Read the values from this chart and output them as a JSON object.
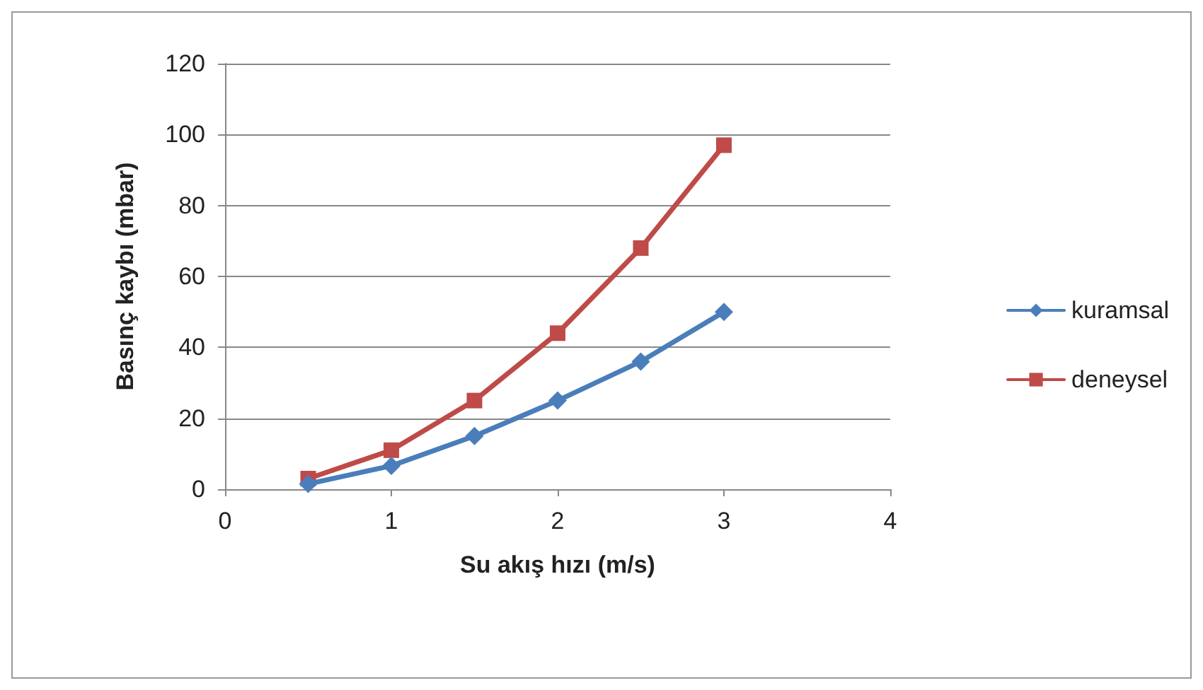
{
  "chart_data": {
    "type": "line",
    "xlabel": "Su akış hızı (m/s)",
    "ylabel": "Basınç kaybı (mbar)",
    "x": [
      0.5,
      1,
      1.5,
      2,
      2.5,
      3
    ],
    "series": [
      {
        "name": "kuramsal",
        "color": "#4a7ebb",
        "marker": "diamond",
        "values": [
          1.5,
          6.6,
          15,
          25,
          36,
          50
        ]
      },
      {
        "name": "deneysel",
        "color": "#be4b48",
        "marker": "square",
        "values": [
          3,
          11,
          25,
          44,
          68,
          97
        ]
      }
    ],
    "xlim": [
      0,
      4
    ],
    "xticks": [
      0,
      1,
      2,
      3,
      4
    ],
    "ylim": [
      0,
      120
    ],
    "yticks": [
      0,
      20,
      40,
      60,
      80,
      100,
      120
    ],
    "grid": "y",
    "legend": "right",
    "line_style": "solid"
  }
}
